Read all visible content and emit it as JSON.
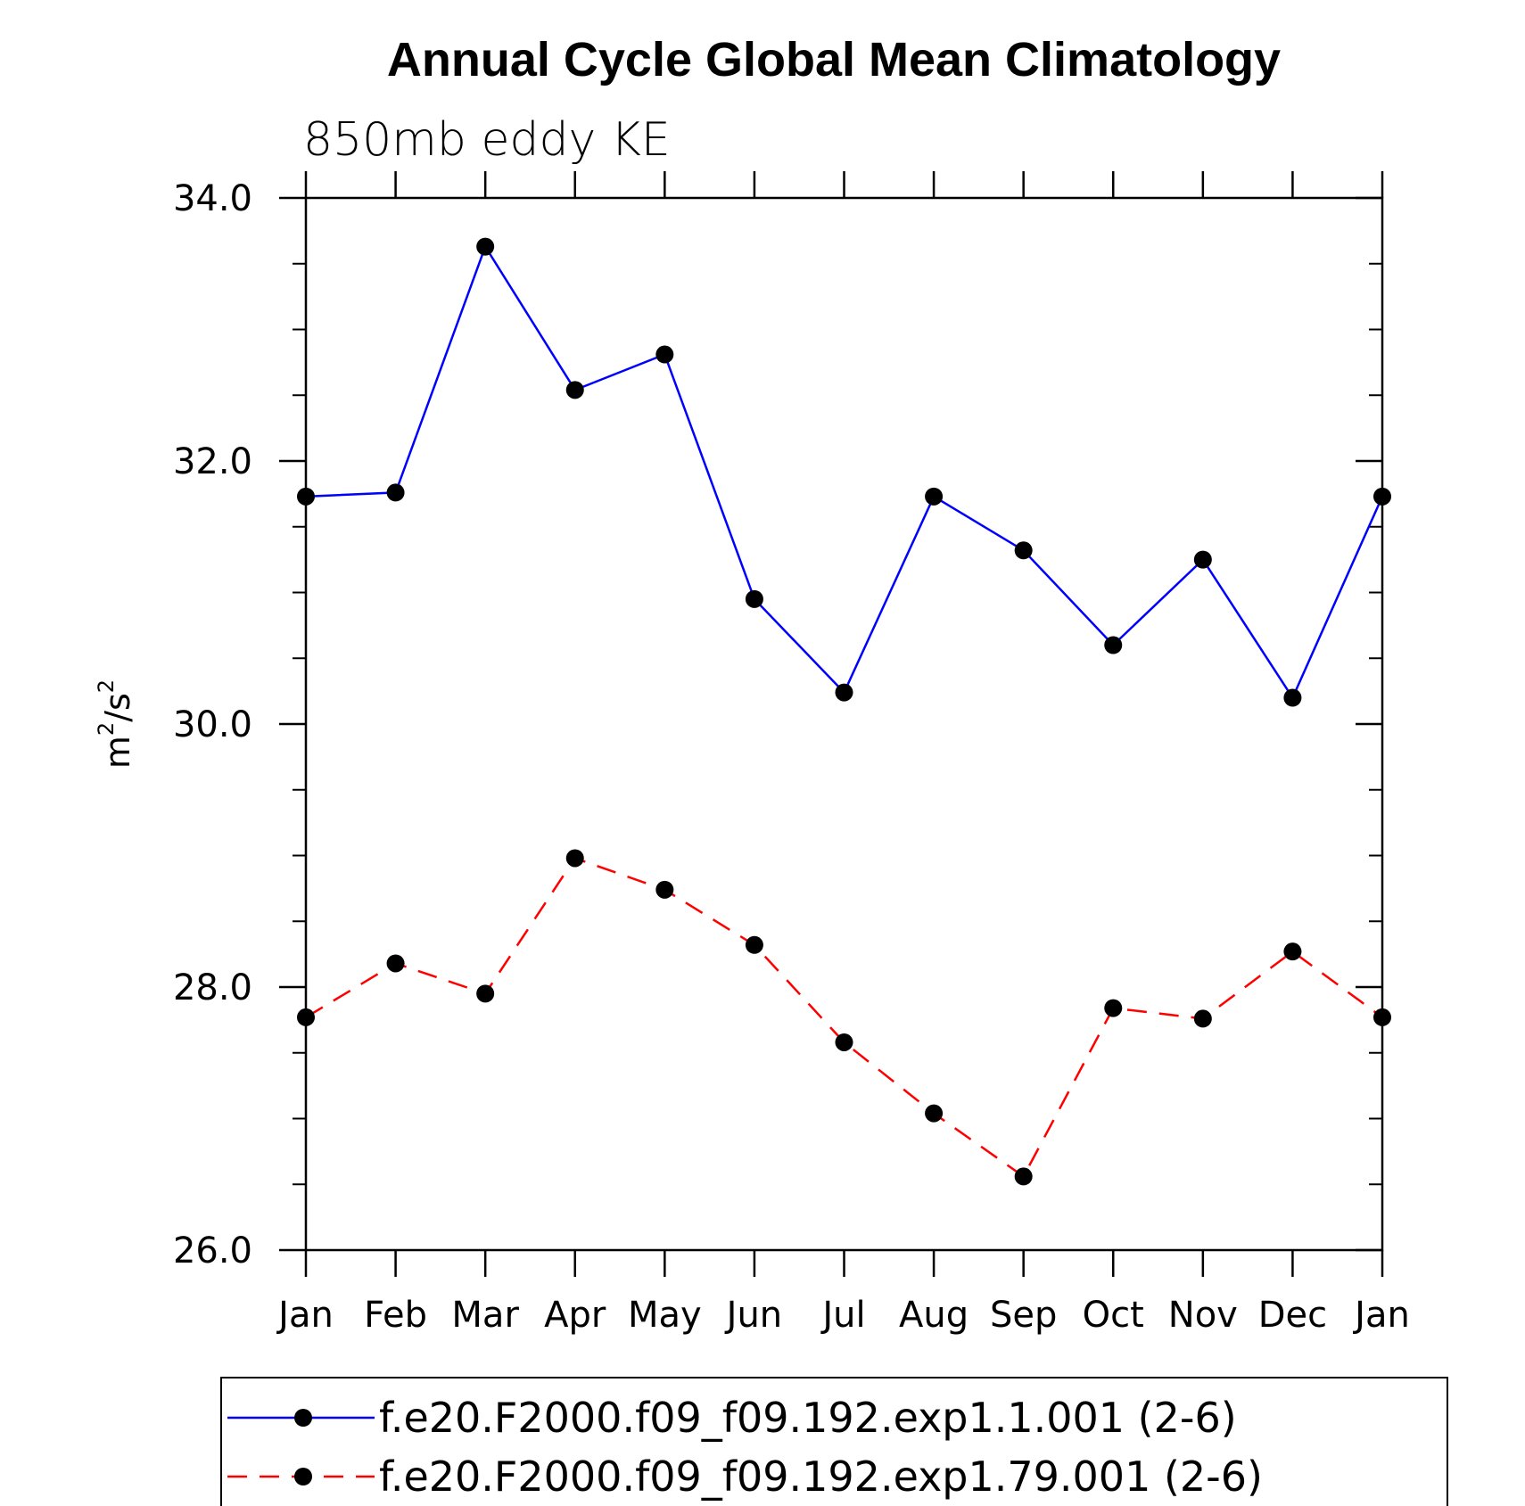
{
  "chart_data": {
    "type": "line",
    "title": "Annual Cycle Global Mean Climatology",
    "subtitle": "850mb eddy KE",
    "ylabel_base": "m",
    "ylabel_sup1": "2",
    "ylabel_mid": "/s",
    "ylabel_sup2": "2",
    "xlabel": "",
    "categories": [
      "Jan",
      "Feb",
      "Mar",
      "Apr",
      "May",
      "Jun",
      "Jul",
      "Aug",
      "Sep",
      "Oct",
      "Nov",
      "Dec",
      "Jan"
    ],
    "ylim": [
      26.0,
      34.0
    ],
    "yticks_major": [
      26.0,
      28.0,
      30.0,
      32.0,
      34.0
    ],
    "ytick_labels": [
      "26.0",
      "28.0",
      "30.0",
      "32.0",
      "34.0"
    ],
    "yminor_step": 0.5,
    "grid": false,
    "legend_position": "bottom",
    "series": [
      {
        "name": "f.e20.F2000.f09_f09.192.exp1.1.001 (2-6)",
        "color": "#0000ff",
        "dash": "solid",
        "values": [
          31.73,
          31.76,
          33.63,
          32.54,
          32.81,
          30.95,
          30.24,
          31.73,
          31.32,
          30.6,
          31.25,
          30.2,
          31.73
        ]
      },
      {
        "name": "f.e20.F2000.f09_f09.192.exp1.79.001 (2-6)",
        "color": "#ff0000",
        "dash": "dashed",
        "values": [
          27.77,
          28.18,
          27.95,
          28.98,
          28.74,
          28.32,
          27.58,
          27.04,
          26.56,
          27.84,
          27.76,
          28.27,
          27.77
        ]
      }
    ]
  }
}
